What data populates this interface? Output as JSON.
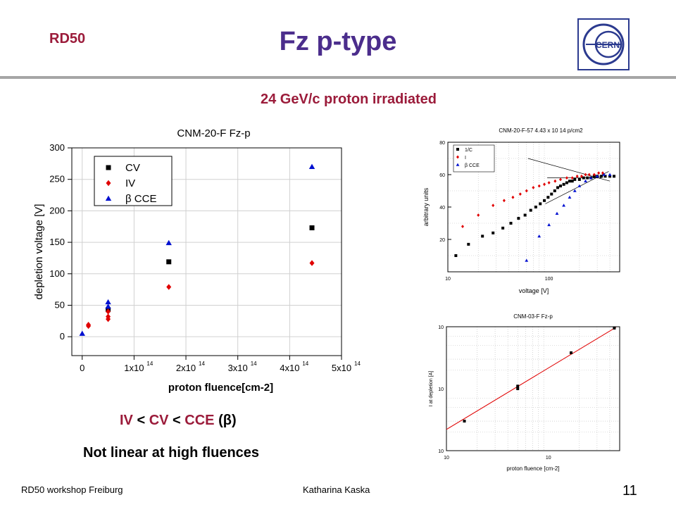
{
  "header": {
    "tag": "RD50",
    "title": "Fz p-type",
    "logo_text": "CERN",
    "subtitle": "24 GeV/c proton irradiated"
  },
  "colors": {
    "tag": "#9b1b3a",
    "title": "#4b2d8c",
    "logo": "#2b3a8f",
    "rule": "#a6a6a6"
  },
  "chart_data": [
    {
      "type": "scatter",
      "title": "CNM-20-F Fz-p",
      "xlabel": "proton fluence[cm-2]",
      "ylabel": "depletion voltage [V]",
      "xlim": [
        -0.2,
        5.0
      ],
      "ylim": [
        -30,
        300
      ],
      "x_scale_note": "x ticks in units of 1x10^14",
      "x_ticks": [
        0,
        1,
        2,
        3,
        4,
        5
      ],
      "x_tick_labels": [
        "0",
        "1x10",
        "2x10",
        "3x10",
        "4x10",
        "5x10"
      ],
      "x_tick_exp": "14",
      "y_ticks": [
        0,
        50,
        100,
        150,
        200,
        250,
        300
      ],
      "grid": true,
      "legend_position": "top-left",
      "series": [
        {
          "name": "CV",
          "marker": "square",
          "color": "#000000",
          "x": [
            0.5,
            1.67,
            4.43
          ],
          "y": [
            43,
            119,
            173
          ]
        },
        {
          "name": "IV",
          "marker": "diamond",
          "color": "#e00000",
          "x": [
            0.12,
            0.12,
            0.5,
            0.5,
            0.5,
            1.67,
            4.43
          ],
          "y": [
            17,
            19,
            28,
            32,
            40,
            79,
            117
          ]
        },
        {
          "name": "β CCE",
          "marker": "triangle",
          "color": "#0010d0",
          "x": [
            0.0,
            0.5,
            0.5,
            1.67,
            4.43
          ],
          "y": [
            5,
            48,
            55,
            149,
            270
          ]
        }
      ]
    },
    {
      "type": "scatter",
      "title": "CNM-20-F-57 4.43 x 10 14 p/cm2",
      "xlabel": "voltage [V]",
      "ylabel": "arbitrary units",
      "x_scale": "log",
      "xlim": [
        10,
        500
      ],
      "ylim": [
        0,
        80
      ],
      "x_tick_labels": [
        "10",
        "100"
      ],
      "y_ticks": [
        20,
        40,
        60,
        80
      ],
      "grid": true,
      "legend_position": "top-left",
      "series": [
        {
          "name": "1/C",
          "marker": "square",
          "color": "#000000",
          "x": [
            12,
            16,
            22,
            28,
            35,
            42,
            50,
            58,
            66,
            74,
            82,
            90,
            98,
            106,
            114,
            122,
            130,
            140,
            150,
            160,
            170,
            180,
            200,
            220,
            240,
            260,
            280,
            300,
            330,
            360,
            400,
            440
          ],
          "y": [
            10,
            17,
            22,
            24,
            27,
            30,
            33,
            35,
            38,
            40,
            42,
            44,
            46,
            48,
            50,
            52,
            53,
            54,
            55,
            56,
            56,
            57,
            57,
            58,
            58,
            58,
            59,
            59,
            59,
            59,
            59,
            59
          ]
        },
        {
          "name": "I",
          "marker": "diamond",
          "color": "#e00000",
          "x": [
            14,
            20,
            28,
            36,
            44,
            52,
            60,
            70,
            80,
            90,
            100,
            115,
            130,
            150,
            170,
            190,
            210,
            230,
            250,
            280,
            310,
            340
          ],
          "y": [
            28,
            35,
            41,
            44,
            46,
            48,
            50,
            52,
            53,
            54,
            55,
            56,
            57,
            58,
            58,
            59,
            59,
            60,
            60,
            60,
            61,
            61
          ]
        },
        {
          "name": "β CCE",
          "marker": "triangle",
          "color": "#0010d0",
          "x": [
            60,
            80,
            100,
            120,
            140,
            160,
            180,
            200,
            230,
            260,
            300,
            350,
            400
          ],
          "y": [
            7,
            22,
            29,
            36,
            41,
            46,
            50,
            53,
            56,
            58,
            59,
            60,
            60
          ]
        }
      ]
    },
    {
      "type": "scatter",
      "title": "CNM-03-F Fz-p",
      "xlabel": "proton fluence [cm-2]",
      "ylabel": "I at depletion [A]",
      "x_scale": "log",
      "y_scale": "log",
      "x_tick_labels": [
        "10",
        "10"
      ],
      "y_tick_labels": [
        "10",
        "10",
        "10"
      ],
      "grid": true,
      "series": [
        {
          "name": "",
          "marker": "square",
          "color": "#000000",
          "x": [
            0.15,
            0.5,
            0.5,
            1.67,
            4.43
          ],
          "y": [
            0.0003,
            0.001,
            0.0011,
            0.0038,
            0.0095
          ]
        }
      ],
      "fit_line": {
        "color": "#e00000"
      }
    }
  ],
  "text": {
    "relation": {
      "a": "IV",
      "lt1": " < ",
      "b": "CV",
      "lt2": " < ",
      "c": "CCE",
      "d": " (β)"
    },
    "note": "Not linear at high fluences"
  },
  "footer": {
    "left": "RD50 workshop Freiburg",
    "center": "Katharina Kaska",
    "page": "11"
  }
}
